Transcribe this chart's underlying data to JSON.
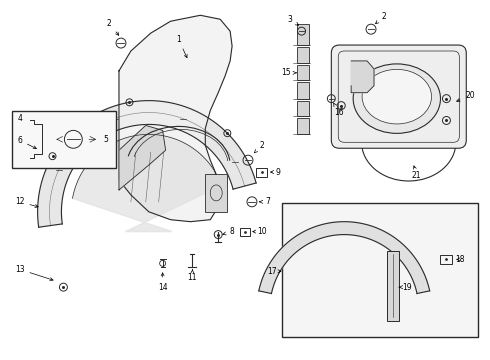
{
  "bg_color": "#ffffff",
  "line_color": "#2a2a2a",
  "fig_width": 4.9,
  "fig_height": 3.6,
  "dpi": 100,
  "label_fontsize": 5.5
}
